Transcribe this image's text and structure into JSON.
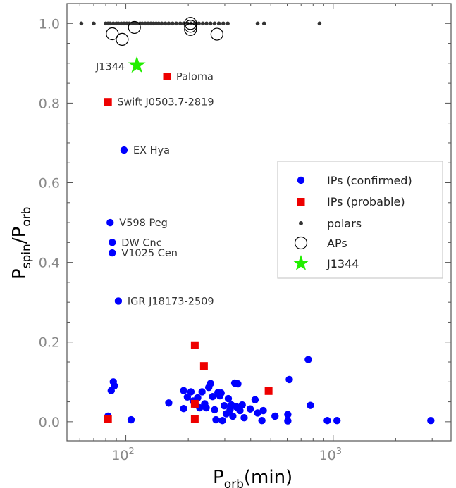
{
  "chart_data": {
    "type": "scatter",
    "x_scale": "log",
    "xlim": [
      52,
      3700
    ],
    "ylim": [
      -0.048,
      1.05
    ],
    "xlabel": {
      "main": "P",
      "sub": "orb",
      "unit": "(min)"
    },
    "ylabel": {
      "main": "P",
      "sub1": "spin",
      "slash": "/P",
      "sub2": "orb"
    },
    "x_ticks": [
      {
        "value": 100,
        "base": "10",
        "exp": "2"
      },
      {
        "value": 1000,
        "base": "10",
        "exp": "3"
      }
    ],
    "y_ticks": [
      {
        "value": 0.0,
        "label": "0.0"
      },
      {
        "value": 0.2,
        "label": "0.2"
      },
      {
        "value": 0.4,
        "label": "0.4"
      },
      {
        "value": 0.6,
        "label": "0.6"
      },
      {
        "value": 0.8,
        "label": "0.8"
      },
      {
        "value": 1.0,
        "label": "1.0"
      }
    ],
    "grid": false,
    "legend_position": "right",
    "series": [
      {
        "name": "IPs (confirmed)",
        "marker": "circle",
        "color": "#0000ff",
        "points": [
          [
            82,
            0.014
          ],
          [
            85,
            0.078
          ],
          [
            87,
            0.1
          ],
          [
            88,
            0.09
          ],
          [
            106,
            0.005
          ],
          [
            161,
            0.047
          ],
          [
            190,
            0.078
          ],
          [
            190,
            0.033
          ],
          [
            198,
            0.062
          ],
          [
            206,
            0.075
          ],
          [
            211,
            0.052
          ],
          [
            216,
            0.043
          ],
          [
            222,
            0.06
          ],
          [
            227,
            0.035
          ],
          [
            233,
            0.075
          ],
          [
            240,
            0.045
          ],
          [
            244,
            0.035
          ],
          [
            251,
            0.086
          ],
          [
            256,
            0.096
          ],
          [
            262,
            0.063
          ],
          [
            268,
            0.03
          ],
          [
            272,
            0.005
          ],
          [
            278,
            0.073
          ],
          [
            284,
            0.065
          ],
          [
            288,
            0.072
          ],
          [
            292,
            0.003
          ],
          [
            298,
            0.04
          ],
          [
            305,
            0.02
          ],
          [
            312,
            0.058
          ],
          [
            318,
            0.03
          ],
          [
            323,
            0.042
          ],
          [
            328,
            0.014
          ],
          [
            335,
            0.097
          ],
          [
            342,
            0.037
          ],
          [
            347,
            0.095
          ],
          [
            355,
            0.028
          ],
          [
            364,
            0.042
          ],
          [
            372,
            0.01
          ],
          [
            398,
            0.032
          ],
          [
            420,
            0.055
          ],
          [
            432,
            0.022
          ],
          [
            453,
            0.003
          ],
          [
            460,
            0.028
          ],
          [
            524,
            0.014
          ],
          [
            604,
            0.018
          ],
          [
            604,
            0.002
          ],
          [
            614,
            0.106
          ],
          [
            758,
            0.156
          ],
          [
            776,
            0.041
          ],
          [
            936,
            0.003
          ],
          [
            1043,
            0.003
          ],
          [
            2956,
            0.003
          ],
          [
            84,
            0.5
          ],
          [
            86,
            0.45
          ],
          [
            86,
            0.424
          ],
          [
            92,
            0.303
          ],
          [
            98,
            0.682
          ]
        ]
      },
      {
        "name": "IPs (probable)",
        "marker": "square",
        "color": "#ee0000",
        "points": [
          [
            82,
            0.006
          ],
          [
            82,
            0.803
          ],
          [
            158,
            0.867
          ],
          [
            215,
            0.192
          ],
          [
            215,
            0.045
          ],
          [
            215,
            0.006
          ],
          [
            238,
            0.14
          ],
          [
            488,
            0.077
          ]
        ]
      },
      {
        "name": "polars",
        "marker": "dot",
        "color": "#333333",
        "points": [
          [
            61,
            1.0
          ],
          [
            70,
            1.0
          ],
          [
            80,
            1.0
          ],
          [
            82,
            1.0
          ],
          [
            84,
            1.0
          ],
          [
            87,
            1.0
          ],
          [
            90,
            1.0
          ],
          [
            92,
            1.0
          ],
          [
            95,
            1.0
          ],
          [
            98,
            1.0
          ],
          [
            101,
            1.0
          ],
          [
            104,
            1.0
          ],
          [
            108,
            1.0
          ],
          [
            111,
            1.0
          ],
          [
            113,
            1.0
          ],
          [
            117,
            1.0
          ],
          [
            120,
            1.0
          ],
          [
            124,
            1.0
          ],
          [
            128,
            1.0
          ],
          [
            132,
            1.0
          ],
          [
            136,
            1.0
          ],
          [
            140,
            1.0
          ],
          [
            144,
            1.0
          ],
          [
            149,
            1.0
          ],
          [
            155,
            1.0
          ],
          [
            161,
            1.0
          ],
          [
            168,
            1.0
          ],
          [
            175,
            1.0
          ],
          [
            183,
            1.0
          ],
          [
            190,
            1.0
          ],
          [
            198,
            1.0
          ],
          [
            206,
            1.0
          ],
          [
            215,
            1.0
          ],
          [
            225,
            1.0
          ],
          [
            235,
            1.0
          ],
          [
            245,
            1.0
          ],
          [
            256,
            1.0
          ],
          [
            268,
            1.0
          ],
          [
            281,
            1.0
          ],
          [
            295,
            1.0
          ],
          [
            310,
            1.0
          ],
          [
            432,
            1.0
          ],
          [
            464,
            1.0
          ],
          [
            859,
            1.0
          ]
        ]
      },
      {
        "name": "APs",
        "marker": "open-circle",
        "color": "#000000",
        "points": [
          [
            86,
            0.974
          ],
          [
            96,
            0.96
          ],
          [
            110,
            0.99
          ],
          [
            205,
            1.0
          ],
          [
            205,
            0.993
          ],
          [
            205,
            0.985
          ],
          [
            275,
            0.973
          ]
        ]
      },
      {
        "name": "J1344",
        "marker": "star",
        "color": "#22ee00",
        "points": [
          [
            113,
            0.895
          ]
        ]
      }
    ],
    "annotations": [
      {
        "text": "J1344",
        "x": 113,
        "y": 0.895,
        "big": true
      },
      {
        "text": "Paloma",
        "x": 158,
        "y": 0.867
      },
      {
        "text": "Swift J0503.7-2819",
        "x": 82,
        "y": 0.803
      },
      {
        "text": "EX Hya",
        "x": 98,
        "y": 0.682
      },
      {
        "text": "V598 Peg",
        "x": 84,
        "y": 0.5
      },
      {
        "text": "DW Cnc",
        "x": 86,
        "y": 0.45
      },
      {
        "text": "V1025 Cen",
        "x": 86,
        "y": 0.424
      },
      {
        "text": "IGR J18173-2509",
        "x": 92,
        "y": 0.303
      }
    ]
  }
}
